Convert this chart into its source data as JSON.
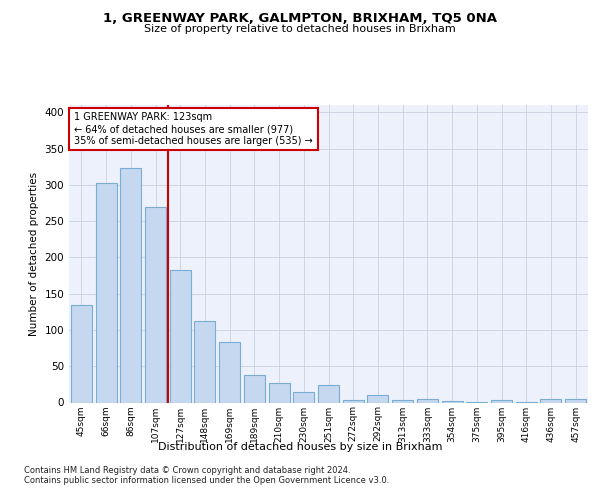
{
  "title": "1, GREENWAY PARK, GALMPTON, BRIXHAM, TQ5 0NA",
  "subtitle": "Size of property relative to detached houses in Brixham",
  "xlabel": "Distribution of detached houses by size in Brixham",
  "ylabel": "Number of detached properties",
  "footnote1": "Contains HM Land Registry data © Crown copyright and database right 2024.",
  "footnote2": "Contains public sector information licensed under the Open Government Licence v3.0.",
  "categories": [
    "45sqm",
    "66sqm",
    "86sqm",
    "107sqm",
    "127sqm",
    "148sqm",
    "169sqm",
    "189sqm",
    "210sqm",
    "230sqm",
    "251sqm",
    "272sqm",
    "292sqm",
    "313sqm",
    "333sqm",
    "354sqm",
    "375sqm",
    "395sqm",
    "416sqm",
    "436sqm",
    "457sqm"
  ],
  "values": [
    135,
    302,
    323,
    270,
    182,
    113,
    84,
    38,
    27,
    15,
    24,
    3,
    10,
    4,
    5,
    2,
    1,
    3,
    1,
    5,
    5
  ],
  "bar_color": "#c5d8f0",
  "bar_edge_color": "#7aadd4",
  "grid_color": "#c8d0e0",
  "vline_color": "#cc0000",
  "annotation_line1": "1 GREENWAY PARK: 123sqm",
  "annotation_line2": "← 64% of detached houses are smaller (977)",
  "annotation_line3": "35% of semi-detached houses are larger (535) →",
  "annotation_box_color": "white",
  "annotation_box_edge": "#cc0000",
  "ylim": [
    0,
    410
  ],
  "yticks": [
    0,
    50,
    100,
    150,
    200,
    250,
    300,
    350,
    400
  ],
  "axes_facecolor": "#edf1fb",
  "fig_facecolor": "white"
}
